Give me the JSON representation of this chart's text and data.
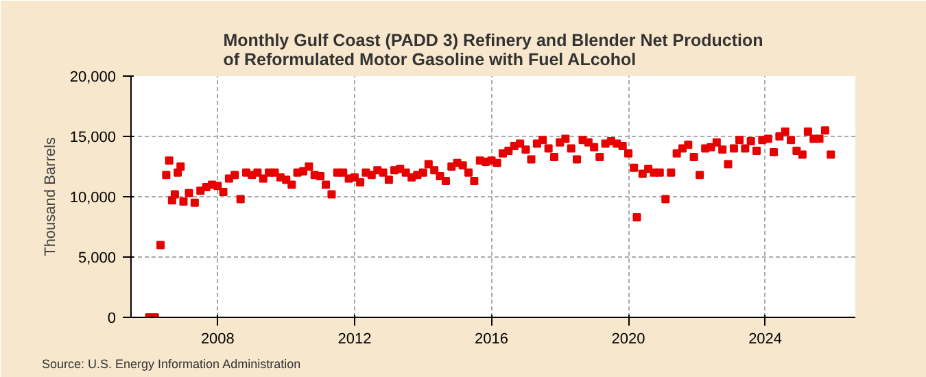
{
  "chart_data": {
    "type": "scatter",
    "title": "Monthly Gulf Coast (PADD 3) Refinery and Blender Net Production of Reformulated Motor Gasoline with Fuel ALcohol",
    "ylabel": "Thousand Barrels",
    "annotations": [
      "Source: U.S. Energy Information Administration"
    ],
    "x": [
      "2006-01",
      "2006-03",
      "2006-05",
      "2006-07",
      "2006-08",
      "2006-09",
      "2006-10",
      "2006-11",
      "2006-12",
      "2007-01",
      "2007-03",
      "2007-05",
      "2007-07",
      "2007-09",
      "2007-11",
      "2008-01",
      "2008-03",
      "2008-05",
      "2008-07",
      "2008-09",
      "2008-11",
      "2009-01",
      "2009-03",
      "2009-05",
      "2009-07",
      "2009-09",
      "2009-11",
      "2010-01",
      "2010-03",
      "2010-05",
      "2010-07",
      "2010-09",
      "2010-11",
      "2011-01",
      "2011-03",
      "2011-05",
      "2011-07",
      "2011-09",
      "2011-11",
      "2012-01",
      "2012-03",
      "2012-05",
      "2012-07",
      "2012-09",
      "2012-11",
      "2013-01",
      "2013-03",
      "2013-05",
      "2013-07",
      "2013-09",
      "2013-11",
      "2014-01",
      "2014-03",
      "2014-05",
      "2014-07",
      "2014-09",
      "2014-11",
      "2015-01",
      "2015-03",
      "2015-05",
      "2015-07",
      "2015-09",
      "2015-11",
      "2016-01",
      "2016-03",
      "2016-05",
      "2016-07",
      "2016-09",
      "2016-11",
      "2017-01",
      "2017-03",
      "2017-05",
      "2017-07",
      "2017-09",
      "2017-11",
      "2018-01",
      "2018-03",
      "2018-05",
      "2018-07",
      "2018-09",
      "2018-11",
      "2019-01",
      "2019-03",
      "2019-05",
      "2019-07",
      "2019-09",
      "2019-11",
      "2020-01",
      "2020-03",
      "2020-04",
      "2020-06",
      "2020-08",
      "2020-10",
      "2020-12",
      "2021-02",
      "2021-04",
      "2021-06",
      "2021-08",
      "2021-10",
      "2021-12",
      "2022-02",
      "2022-04",
      "2022-06",
      "2022-08",
      "2022-10",
      "2022-12",
      "2023-02",
      "2023-04",
      "2023-06",
      "2023-08",
      "2023-10",
      "2023-12",
      "2024-02",
      "2024-04",
      "2024-06",
      "2024-08",
      "2024-10",
      "2024-12",
      "2025-02",
      "2025-04",
      "2025-06",
      "2025-08",
      "2025-10",
      "2025-12"
    ],
    "values": [
      0,
      0,
      6000,
      11800,
      13000,
      9700,
      10200,
      12000,
      12500,
      9600,
      10300,
      9500,
      10500,
      10800,
      11000,
      10900,
      10400,
      11500,
      11800,
      9800,
      12000,
      11800,
      12000,
      11500,
      12000,
      12000,
      11600,
      11400,
      11000,
      12000,
      12100,
      12500,
      11800,
      11700,
      11000,
      10200,
      12000,
      12000,
      11500,
      11600,
      11200,
      12000,
      11800,
      12200,
      12000,
      11400,
      12200,
      12300,
      12000,
      11600,
      11800,
      12000,
      12700,
      12200,
      11700,
      11300,
      12500,
      12800,
      12600,
      12000,
      11300,
      13000,
      12900,
      13000,
      12800,
      13600,
      13800,
      14200,
      14400,
      13900,
      13100,
      14400,
      14700,
      14000,
      13300,
      14500,
      14800,
      14000,
      13100,
      14700,
      14500,
      14100,
      13300,
      14400,
      14600,
      14400,
      14200,
      13600,
      12400,
      8300,
      11900,
      12300,
      12000,
      12000,
      9800,
      12000,
      13600,
      14000,
      14300,
      13300,
      11800,
      14000,
      14100,
      14500,
      13900,
      12700,
      14000,
      14700,
      14000,
      14600,
      13800,
      14700,
      14800,
      13700,
      15000,
      15400,
      14700,
      13800,
      13500,
      15400,
      14800,
      14800,
      15500,
      13500
    ],
    "color": "#e60000",
    "marker": "square",
    "xlim": [
      "2005-06-20",
      "2026-08-20"
    ],
    "xticks": [
      "2008",
      "2012",
      "2016",
      "2020",
      "2024"
    ],
    "ylim": [
      0,
      20000
    ],
    "yticks": [
      {
        "value": 0,
        "label": "0"
      },
      {
        "value": 5000,
        "label": "5,000"
      },
      {
        "value": 10000,
        "label": "10,000"
      },
      {
        "value": 15000,
        "label": "15,000"
      },
      {
        "value": 20000,
        "label": "20,000"
      }
    ],
    "grid": true
  }
}
